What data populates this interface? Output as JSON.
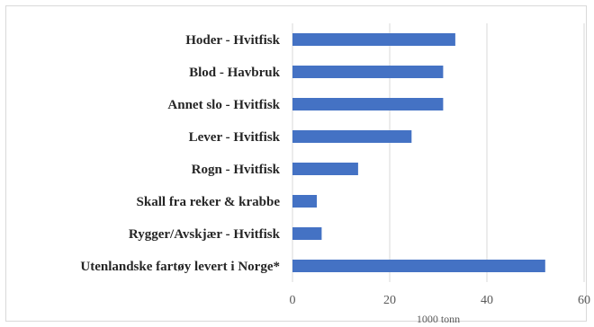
{
  "chart_data": {
    "type": "bar",
    "orientation": "horizontal",
    "categories": [
      "Hoder - Hvitfisk",
      "Blod - Havbruk",
      "Annet slo - Hvitfisk",
      "Lever - Hvitfisk",
      "Rogn - Hvitfisk",
      "Skall fra reker & krabbe",
      "Rygger/Avskjær - Hvitfisk",
      "Utenlandske fartøy levert i Norge*"
    ],
    "values": [
      33.5,
      31,
      31,
      24.5,
      13.5,
      5,
      6,
      52
    ],
    "xlabel": "1000 tonn",
    "ylabel": "",
    "title": "",
    "xlim": [
      0,
      60
    ],
    "xticks": [
      "0",
      "20",
      "40",
      "60"
    ],
    "grid": true,
    "bar_color": "#4472c4",
    "legend": "none"
  }
}
